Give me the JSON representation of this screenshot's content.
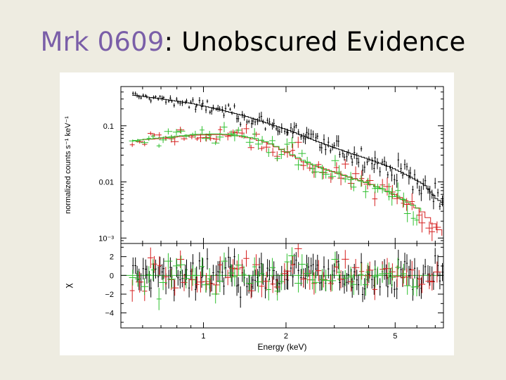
{
  "slide": {
    "title_object": "Mrk 0609",
    "title_rest": ": Unobscured Evidence"
  },
  "chart_data": [
    {
      "type": "scatter",
      "panel": "spectrum",
      "ylabel": "normalized counts s⁻¹ keV⁻¹",
      "yscale": "log",
      "ylim": [
        0.0008,
        0.5
      ],
      "xlim": [
        0.5,
        7.5
      ],
      "xscale": "log",
      "y_ticks": [
        {
          "value": 0.1,
          "label": "0.1"
        },
        {
          "value": 0.01,
          "label": "0.01"
        },
        {
          "value": 0.001,
          "label": "10⁻³"
        }
      ],
      "series": [
        {
          "color": "#000000",
          "x": [
            0.55,
            0.7,
            0.9,
            1.1,
            1.4,
            1.7,
            2.0,
            2.4,
            2.8,
            3.3,
            4.0,
            4.8,
            5.5,
            6.3,
            7.0,
            7.5
          ],
          "y": [
            0.35,
            0.3,
            0.25,
            0.2,
            0.15,
            0.11,
            0.085,
            0.06,
            0.045,
            0.034,
            0.025,
            0.018,
            0.013,
            0.009,
            0.005,
            0.004
          ]
        },
        {
          "color": "#d62020",
          "x": [
            0.55,
            0.7,
            0.9,
            1.1,
            1.3,
            1.5,
            1.7,
            2.0,
            2.3,
            2.7,
            3.2,
            3.8,
            4.4,
            5.0,
            5.6,
            6.2,
            6.8,
            7.4
          ],
          "y": [
            0.055,
            0.06,
            0.068,
            0.07,
            0.066,
            0.058,
            0.048,
            0.032,
            0.022,
            0.017,
            0.013,
            0.01,
            0.0075,
            0.0055,
            0.004,
            0.0028,
            0.0017,
            0.0011
          ]
        },
        {
          "color": "#2ec02e",
          "x": [
            0.55,
            0.7,
            0.9,
            1.1,
            1.3,
            1.5,
            1.7,
            2.0,
            2.3,
            2.7,
            3.2,
            3.8,
            4.4,
            5.0,
            5.6,
            6.2
          ],
          "y": [
            0.055,
            0.062,
            0.07,
            0.072,
            0.068,
            0.06,
            0.05,
            0.033,
            0.023,
            0.017,
            0.013,
            0.0098,
            0.0074,
            0.0055,
            0.004,
            0.003
          ]
        }
      ]
    },
    {
      "type": "scatter",
      "panel": "residuals",
      "ylabel": "χ",
      "xlabel": "Energy (keV)",
      "ylim": [
        -5.6,
        3.4
      ],
      "xlim": [
        0.5,
        7.5
      ],
      "xscale": "log",
      "x_ticks": [
        {
          "value": 1,
          "label": "1"
        },
        {
          "value": 2,
          "label": "2"
        },
        {
          "value": 5,
          "label": "5"
        }
      ],
      "y_ticks": [
        {
          "value": 2,
          "label": "2"
        },
        {
          "value": 0,
          "label": "0"
        },
        {
          "value": -2,
          "label": "−2"
        },
        {
          "value": -4,
          "label": "−4"
        }
      ],
      "zero_line": 0
    }
  ]
}
